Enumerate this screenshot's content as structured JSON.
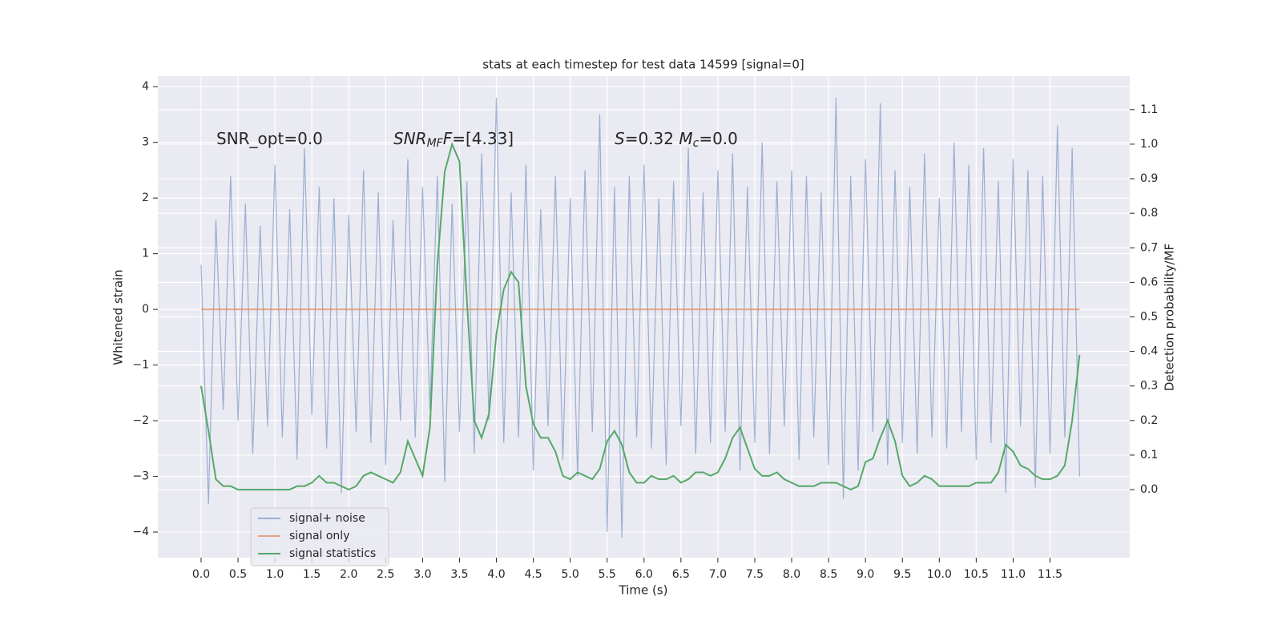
{
  "chart_data": {
    "type": "line",
    "title": "stats at each timestep for test data 14599 [signal=0]",
    "xlabel": "Time (s)",
    "ylabel": "Whitened strain",
    "y2label": "Detection probability/MF",
    "annotations": [
      [
        {
          "text": "SNR_opt=0.0",
          "italic": false,
          "sub": false
        }
      ],
      [
        {
          "text": "SNR",
          "italic": true,
          "sub": false
        },
        {
          "text": "MF",
          "italic": true,
          "sub": true
        },
        {
          "text": "F",
          "italic": true,
          "sub": false
        },
        {
          "text": "=[4.33]",
          "italic": false,
          "sub": false
        }
      ],
      [
        {
          "text": "S",
          "italic": true,
          "sub": false
        },
        {
          "text": "=0.32   ",
          "italic": false,
          "sub": false
        },
        {
          "text": "M",
          "italic": true,
          "sub": false
        },
        {
          "text": "c",
          "italic": true,
          "sub": true
        },
        {
          "text": "=0.0",
          "italic": false,
          "sub": false
        }
      ]
    ],
    "x": [
      0,
      0.1,
      0.2,
      0.3,
      0.4,
      0.5,
      0.6,
      0.7,
      0.8,
      0.9,
      1,
      1.1,
      1.2,
      1.3,
      1.4,
      1.5,
      1.6,
      1.7,
      1.8,
      1.9,
      2,
      2.1,
      2.2,
      2.3,
      2.4,
      2.5,
      2.6,
      2.7,
      2.8,
      2.9,
      3,
      3.1,
      3.2,
      3.3,
      3.4,
      3.5,
      3.6,
      3.7,
      3.8,
      3.9,
      4,
      4.1,
      4.2,
      4.3,
      4.4,
      4.5,
      4.6,
      4.7,
      4.8,
      4.9,
      5,
      5.1,
      5.2,
      5.3,
      5.4,
      5.5,
      5.6,
      5.7,
      5.8,
      5.9,
      6,
      6.1,
      6.2,
      6.3,
      6.4,
      6.5,
      6.6,
      6.7,
      6.8,
      6.9,
      7,
      7.1,
      7.2,
      7.3,
      7.4,
      7.5,
      7.6,
      7.7,
      7.8,
      7.9,
      8,
      8.1,
      8.2,
      8.3,
      8.4,
      8.5,
      8.6,
      8.7,
      8.8,
      8.9,
      9,
      9.1,
      9.2,
      9.3,
      9.4,
      9.5,
      9.6,
      9.7,
      9.8,
      9.9,
      10,
      10.1,
      10.2,
      10.3,
      10.4,
      10.5,
      10.6,
      10.7,
      10.8,
      10.9,
      11,
      11.1,
      11.2,
      11.3,
      11.4,
      11.5,
      11.6,
      11.7,
      11.8,
      11.9
    ],
    "series": [
      {
        "name": "signal+ noise",
        "color": "#4c72b0",
        "opacity": 0.5,
        "axis": "y",
        "values": [
          0.8,
          -3.5,
          1.6,
          -1.8,
          2.4,
          -2.0,
          1.9,
          -2.6,
          1.5,
          -2.1,
          2.6,
          -2.3,
          1.8,
          -2.7,
          2.9,
          -1.9,
          2.2,
          -2.5,
          2.0,
          -3.3,
          1.7,
          -2.2,
          2.5,
          -2.4,
          2.1,
          -2.8,
          1.6,
          -2.0,
          2.7,
          -2.3,
          2.2,
          -1.8,
          2.4,
          -3.1,
          1.9,
          -2.2,
          2.3,
          -2.6,
          2.8,
          -2.0,
          3.8,
          -2.4,
          2.1,
          -2.3,
          2.6,
          -2.9,
          1.8,
          -2.1,
          2.4,
          -2.7,
          2.0,
          -3.0,
          2.5,
          -2.2,
          3.5,
          -4.0,
          2.2,
          -4.1,
          2.4,
          -2.3,
          2.6,
          -2.5,
          2.0,
          -2.8,
          2.3,
          -2.1,
          2.9,
          -2.6,
          2.1,
          -2.4,
          2.5,
          -2.2,
          2.8,
          -2.9,
          2.2,
          -2.4,
          3.0,
          -2.6,
          2.3,
          -2.1,
          2.5,
          -2.7,
          2.4,
          -2.3,
          2.1,
          -2.8,
          3.8,
          -3.4,
          2.4,
          -2.9,
          2.7,
          -2.2,
          3.7,
          -2.8,
          2.5,
          -2.4,
          2.2,
          -2.6,
          2.8,
          -2.3,
          2.0,
          -2.5,
          3.0,
          -2.2,
          2.6,
          -2.7,
          2.9,
          -2.4,
          2.3,
          -3.3,
          2.7,
          -2.1,
          2.5,
          -3.2,
          2.4,
          -2.6,
          3.3,
          -2.3,
          2.9,
          -3.0
        ]
      },
      {
        "name": "signal only",
        "color": "#dd8452",
        "opacity": 0.7,
        "axis": "y",
        "values": [
          0,
          0,
          0,
          0,
          0,
          0,
          0,
          0,
          0,
          0,
          0,
          0,
          0,
          0,
          0,
          0,
          0,
          0,
          0,
          0,
          0,
          0,
          0,
          0,
          0,
          0,
          0,
          0,
          0,
          0,
          0,
          0,
          0,
          0,
          0,
          0,
          0,
          0,
          0,
          0,
          0,
          0,
          0,
          0,
          0,
          0,
          0,
          0,
          0,
          0,
          0,
          0,
          0,
          0,
          0,
          0,
          0,
          0,
          0,
          0,
          0,
          0,
          0,
          0,
          0,
          0,
          0,
          0,
          0,
          0,
          0,
          0,
          0,
          0,
          0,
          0,
          0,
          0,
          0,
          0,
          0,
          0,
          0,
          0,
          0,
          0,
          0,
          0,
          0,
          0,
          0,
          0,
          0,
          0,
          0,
          0,
          0,
          0,
          0,
          0,
          0,
          0,
          0,
          0,
          0,
          0,
          0,
          0,
          0,
          0,
          0,
          0,
          0,
          0,
          0,
          0,
          0,
          0,
          0,
          0
        ]
      },
      {
        "name": "signal statistics",
        "color": "#55a868",
        "opacity": 1,
        "axis": "y2",
        "values": [
          0.3,
          0.17,
          0.03,
          0.01,
          0.01,
          0.0,
          0.0,
          0.0,
          0.0,
          0.0,
          0.0,
          0.0,
          0.0,
          0.01,
          0.01,
          0.02,
          0.04,
          0.02,
          0.02,
          0.01,
          0.0,
          0.01,
          0.04,
          0.05,
          0.04,
          0.03,
          0.02,
          0.05,
          0.14,
          0.09,
          0.04,
          0.18,
          0.65,
          0.92,
          1.0,
          0.95,
          0.55,
          0.2,
          0.15,
          0.22,
          0.45,
          0.58,
          0.63,
          0.6,
          0.3,
          0.19,
          0.15,
          0.15,
          0.11,
          0.04,
          0.03,
          0.05,
          0.04,
          0.03,
          0.06,
          0.14,
          0.17,
          0.13,
          0.05,
          0.02,
          0.02,
          0.04,
          0.03,
          0.03,
          0.04,
          0.02,
          0.03,
          0.05,
          0.05,
          0.04,
          0.05,
          0.09,
          0.15,
          0.18,
          0.12,
          0.06,
          0.04,
          0.04,
          0.05,
          0.03,
          0.02,
          0.01,
          0.01,
          0.01,
          0.02,
          0.02,
          0.02,
          0.01,
          0.0,
          0.01,
          0.08,
          0.09,
          0.15,
          0.2,
          0.14,
          0.04,
          0.01,
          0.02,
          0.04,
          0.03,
          0.01,
          0.01,
          0.01,
          0.01,
          0.01,
          0.02,
          0.02,
          0.02,
          0.05,
          0.13,
          0.11,
          0.07,
          0.06,
          0.04,
          0.03,
          0.03,
          0.04,
          0.07,
          0.2,
          0.39
        ]
      }
    ],
    "xlim": [
      -0.586,
      12.58
    ],
    "ylim": [
      -4.46,
      4.19
    ],
    "y2lim": [
      -0.197,
      1.197
    ],
    "xticks": [
      {
        "value": 0,
        "label": "0.0"
      },
      {
        "value": 0.5,
        "label": "0.5"
      },
      {
        "value": 1,
        "label": "1.0"
      },
      {
        "value": 1.5,
        "label": "1.5"
      },
      {
        "value": 2,
        "label": "2.0"
      },
      {
        "value": 2.5,
        "label": "2.5"
      },
      {
        "value": 3,
        "label": "3.0"
      },
      {
        "value": 3.5,
        "label": "3.5"
      },
      {
        "value": 4,
        "label": "4.0"
      },
      {
        "value": 4.5,
        "label": "4.5"
      },
      {
        "value": 5,
        "label": "5.0"
      },
      {
        "value": 5.5,
        "label": "5.5"
      },
      {
        "value": 6,
        "label": "6.0"
      },
      {
        "value": 6.5,
        "label": "6.5"
      },
      {
        "value": 7,
        "label": "7.0"
      },
      {
        "value": 7.5,
        "label": "7.5"
      },
      {
        "value": 8,
        "label": "8.0"
      },
      {
        "value": 8.5,
        "label": "8.5"
      },
      {
        "value": 9,
        "label": "9.0"
      },
      {
        "value": 9.5,
        "label": "9.5"
      },
      {
        "value": 10,
        "label": "10.0"
      },
      {
        "value": 10.5,
        "label": "10.5"
      },
      {
        "value": 11,
        "label": "11.0"
      },
      {
        "value": 11.5,
        "label": "11.5"
      }
    ],
    "yticks": [
      {
        "value": -4,
        "label": "−4"
      },
      {
        "value": -3,
        "label": "−3"
      },
      {
        "value": -2,
        "label": "−2"
      },
      {
        "value": -1,
        "label": "−1"
      },
      0,
      1,
      2,
      3,
      4
    ],
    "y2ticks": [
      {
        "value": 0,
        "label": "0.0"
      },
      {
        "value": 0.1,
        "label": "0.1"
      },
      {
        "value": 0.2,
        "label": "0.2"
      },
      {
        "value": 0.3,
        "label": "0.3"
      },
      {
        "value": 0.4,
        "label": "0.4"
      },
      {
        "value": 0.5,
        "label": "0.5"
      },
      {
        "value": 0.6,
        "label": "0.6"
      },
      {
        "value": 0.7,
        "label": "0.7"
      },
      {
        "value": 0.8,
        "label": "0.8"
      },
      {
        "value": 0.9,
        "label": "0.9"
      },
      {
        "value": 1.0,
        "label": "1.0"
      },
      {
        "value": 1.1,
        "label": "1.1"
      }
    ],
    "grid": true,
    "legend": "lower left"
  }
}
